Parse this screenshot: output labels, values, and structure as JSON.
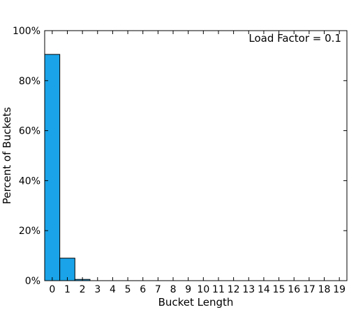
{
  "chart_data": {
    "type": "bar",
    "categories": [
      "0",
      "1",
      "2",
      "3",
      "4",
      "5",
      "6",
      "7",
      "8",
      "9",
      "10",
      "11",
      "12",
      "13",
      "14",
      "15",
      "16",
      "17",
      "18",
      "19"
    ],
    "values": [
      90.5,
      9.0,
      0.5,
      0,
      0,
      0,
      0,
      0,
      0,
      0,
      0,
      0,
      0,
      0,
      0,
      0,
      0,
      0,
      0,
      0
    ],
    "xlabel": "Bucket Length",
    "ylabel": "Percent of Buckets",
    "ylim": [
      0,
      100
    ],
    "yticks": [
      0,
      20,
      40,
      60,
      80,
      100
    ],
    "ytick_labels": [
      "0%",
      "20%",
      "40%",
      "60%",
      "80%",
      "100%"
    ],
    "annotation": "Load Factor = 0.1",
    "annotation_position": "top-right",
    "bar_color": "#1aa3e8",
    "bar_edge_color": "#000000",
    "grid": false
  }
}
